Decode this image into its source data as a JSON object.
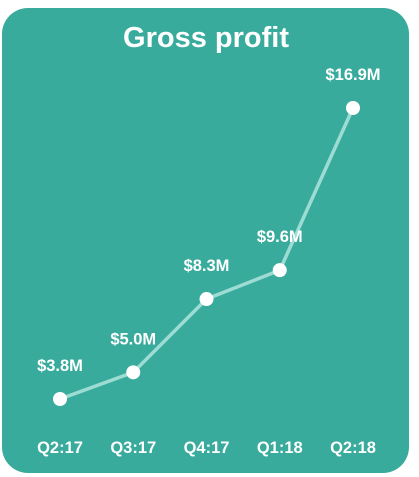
{
  "chart_data": {
    "type": "line",
    "title": "Gross profit",
    "categories": [
      "Q2:17",
      "Q3:17",
      "Q4:17",
      "Q1:18",
      "Q2:18"
    ],
    "series": [
      {
        "values": [
          3.8,
          5.0,
          8.3,
          9.6,
          16.9
        ],
        "labels": [
          "$3.8M",
          "$5.0M",
          "$8.3M",
          "$9.6M",
          "$16.9M"
        ]
      }
    ],
    "xlabel": "",
    "ylabel": "",
    "ylim": [
      3.8,
      16.9
    ],
    "grid": false,
    "legend": "none"
  },
  "colors": {
    "background": "#38ab9d",
    "line": "#9ddcd3",
    "points": "#ffffff",
    "text": "#ffffff"
  }
}
